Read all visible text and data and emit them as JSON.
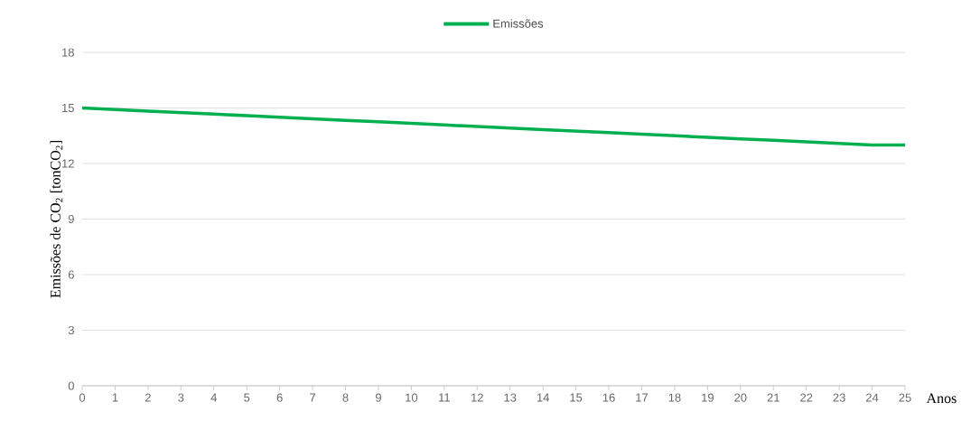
{
  "chart_data": {
    "type": "line",
    "xlabel": "Anos",
    "ylabel": "Emissões de CO$_{2}$ [tonCO$_{2}$]",
    "x": [
      0,
      1,
      2,
      3,
      4,
      5,
      6,
      7,
      8,
      9,
      10,
      11,
      12,
      13,
      14,
      15,
      16,
      17,
      18,
      19,
      20,
      21,
      22,
      23,
      24,
      25
    ],
    "series": [
      {
        "name": "Emissões",
        "color": "#00b050",
        "values": [
          15.0,
          14.92,
          14.83,
          14.75,
          14.67,
          14.58,
          14.5,
          14.42,
          14.33,
          14.25,
          14.17,
          14.08,
          14.0,
          13.92,
          13.83,
          13.75,
          13.67,
          13.58,
          13.5,
          13.42,
          13.33,
          13.25,
          13.17,
          13.08,
          13.0,
          13.0
        ]
      }
    ],
    "xlim": [
      0,
      25
    ],
    "xticks": [
      0,
      1,
      2,
      3,
      4,
      5,
      6,
      7,
      8,
      9,
      10,
      11,
      12,
      13,
      14,
      15,
      16,
      17,
      18,
      19,
      20,
      21,
      22,
      23,
      24,
      25
    ],
    "ylim": [
      0,
      18
    ],
    "yticks": [
      0,
      3,
      6,
      9,
      12,
      15,
      18
    ],
    "grid": "y",
    "legend": "top",
    "marker": "none",
    "line_style": "solid"
  }
}
